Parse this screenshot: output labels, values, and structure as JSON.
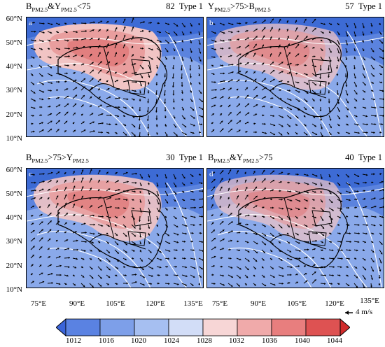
{
  "panels": [
    {
      "id": "a",
      "title_lhs": "B",
      "title_sub1": "PM2.5",
      "title_mid": "&Y",
      "title_sub2": "PM2.5",
      "title_rhs": "<75",
      "count": "82",
      "type": "Type 1"
    },
    {
      "id": "b",
      "title_lhs": "Y",
      "title_sub1": "PM2.5",
      "title_mid": ">75>B",
      "title_sub2": "PM2.5",
      "title_rhs": "",
      "count": "57",
      "type": "Type 1"
    },
    {
      "id": "c",
      "title_lhs": "B",
      "title_sub1": "PM2.5",
      "title_mid": ">75>Y",
      "title_sub2": "PM2.5",
      "title_rhs": "",
      "count": "30",
      "type": "Type 1"
    },
    {
      "id": "d",
      "title_lhs": "B",
      "title_sub1": "PM2.5",
      "title_mid": "&Y",
      "title_sub2": "PM2.5",
      "title_rhs": ">75",
      "count": "40",
      "type": "Type 1"
    }
  ],
  "lat_labels": [
    "60°N",
    "50°N",
    "40°N",
    "30°N",
    "20°N",
    "10°N"
  ],
  "lon_labels": [
    "75°E",
    "90°E",
    "105°E",
    "120°E",
    "135°E"
  ],
  "colorbar": {
    "ticks": [
      "1012",
      "1016",
      "1020",
      "1024",
      "1028",
      "1032",
      "1036",
      "1040",
      "1044"
    ],
    "colors": [
      "#3a64d8",
      "#5a82e2",
      "#7d9fe9",
      "#a6bff1",
      "#d2ddf7",
      "#f7d6d6",
      "#f0aaaa",
      "#e87e7e",
      "#de5252",
      "#d02a2a"
    ]
  },
  "wind_scale": {
    "label": "4 m/s"
  }
}
